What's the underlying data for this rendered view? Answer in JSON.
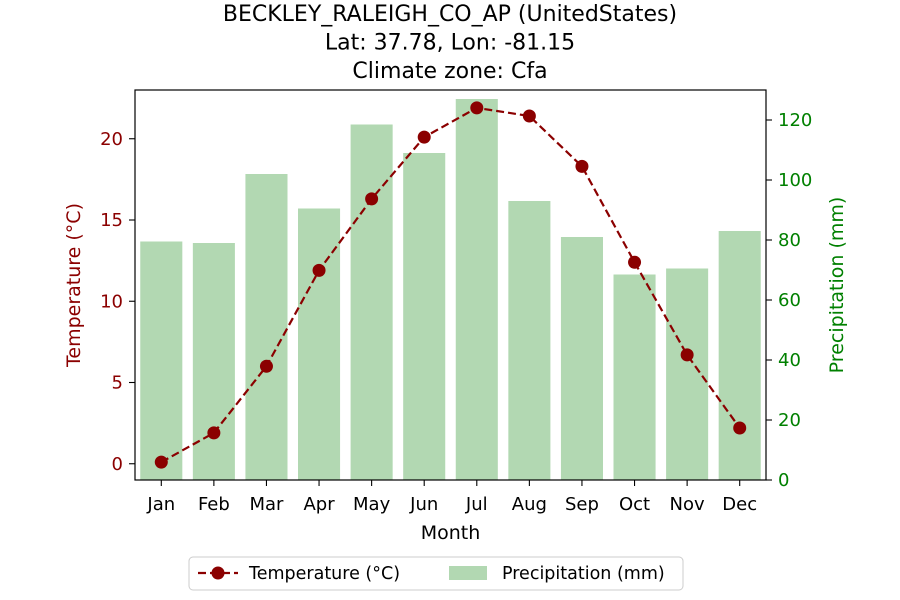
{
  "chart_data": {
    "type": "bar+line",
    "title_lines": [
      "BECKLEY_RALEIGH_CO_AP (UnitedStates)",
      "Lat: 37.78, Lon: -81.15",
      "Climate zone: Cfa"
    ],
    "xlabel": "Month",
    "ylabel_left": "Temperature (°C)",
    "ylabel_right": "Precipitation (mm)",
    "categories": [
      "Jan",
      "Feb",
      "Mar",
      "Apr",
      "May",
      "Jun",
      "Jul",
      "Aug",
      "Sep",
      "Oct",
      "Nov",
      "Dec"
    ],
    "series": [
      {
        "name": "Temperature (°C)",
        "type": "line",
        "axis": "left",
        "color": "#8b0000",
        "values": [
          0.1,
          1.9,
          6.0,
          11.9,
          16.3,
          20.1,
          21.9,
          21.4,
          18.3,
          12.4,
          6.7,
          2.2
        ]
      },
      {
        "name": "Precipitation (mm)",
        "type": "bar",
        "axis": "right",
        "color": "#b2d8b2",
        "values": [
          79.5,
          79.0,
          102.0,
          90.5,
          118.5,
          109.0,
          127.0,
          93.0,
          81.0,
          68.5,
          70.5,
          83.0
        ]
      }
    ],
    "ylim_left": [
      -1.0,
      23.0
    ],
    "yticks_left": [
      0,
      5,
      10,
      15,
      20
    ],
    "ylim_right": [
      0,
      130
    ],
    "yticks_right": [
      0,
      20,
      40,
      60,
      80,
      100,
      120
    ],
    "left_axis_color": "#8b0000",
    "right_axis_color": "#008000",
    "grid": false,
    "legend_position": "bottom-center"
  }
}
